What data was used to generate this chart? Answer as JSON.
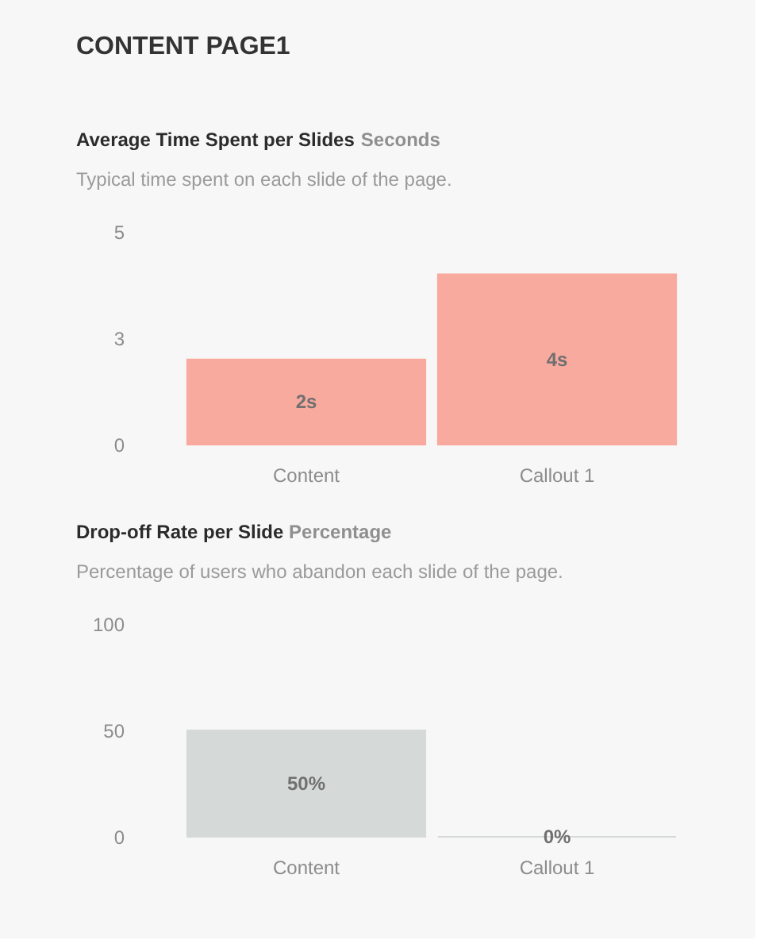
{
  "chart_data": [
    {
      "type": "other",
      "title": "CONTENT PAGE1"
    },
    {
      "type": "bar",
      "title": "Average Time Spent per Slides",
      "ylabel": "Seconds",
      "subtitle": "Typical time spent on each slide of the page.",
      "categories": [
        "Content",
        "Callout 1"
      ],
      "values": [
        2,
        4
      ],
      "value_labels": [
        "2s",
        "4s"
      ],
      "color": "#f9aa9f",
      "ylim": [
        0,
        5
      ],
      "yticks": [
        0,
        {
          "value": 2.5,
          "label": "3"
        },
        5
      ]
    },
    {
      "type": "bar",
      "title": "Drop-off Rate per Slide",
      "ylabel": "Percentage",
      "subtitle": "Percentage of users who abandon each slide of the page.",
      "categories": [
        "Content",
        "Callout 1"
      ],
      "values": [
        50,
        0
      ],
      "value_labels": [
        "50%",
        "0%"
      ],
      "color": "#d5dad9",
      "ylim": [
        0,
        100
      ],
      "yticks": [
        0,
        50,
        100
      ]
    }
  ]
}
